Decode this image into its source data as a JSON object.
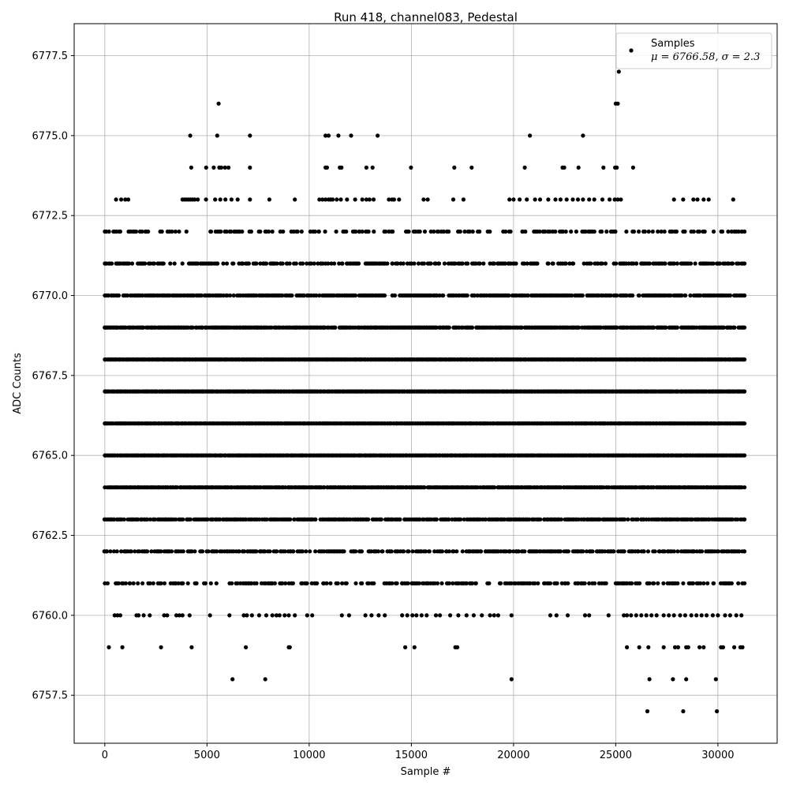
{
  "chart_data": {
    "type": "scatter",
    "title": "Run 418, channel083, Pedestal",
    "xlabel": "Sample #",
    "ylabel": "ADC Counts",
    "xlim": [
      -1500,
      32900
    ],
    "ylim": [
      6756.0,
      6778.5
    ],
    "x_ticks": [
      0,
      5000,
      10000,
      15000,
      20000,
      25000,
      30000
    ],
    "x_tick_labels": [
      "0",
      "5000",
      "10000",
      "15000",
      "20000",
      "25000",
      "30000"
    ],
    "y_ticks": [
      6757.5,
      6760.0,
      6762.5,
      6765.0,
      6767.5,
      6770.0,
      6772.5,
      6775.0,
      6777.5
    ],
    "y_tick_labels": [
      "6757.5",
      "6760.0",
      "6762.5",
      "6765.0",
      "6767.5",
      "6770.0",
      "6772.5",
      "6775.0",
      "6777.5"
    ],
    "grid": true,
    "legend_position": "top-right",
    "marker_color": "#000000",
    "series": [
      {
        "name": "Samples",
        "stats_label": "μ = 6766.58, σ = 2.3",
        "x_range": [
          0,
          31300
        ],
        "levels": [
          {
            "y": 6777,
            "x": [
              25150
            ]
          },
          {
            "y": 6776,
            "x": [
              5570,
              25000,
              25100
            ]
          },
          {
            "y": 6775,
            "x": [
              4180,
              5500,
              7100,
              10800,
              10950,
              11430,
              12050,
              13350,
              20800,
              23400
            ]
          },
          {
            "y": 6774,
            "x": [
              4230,
              4960,
              5330,
              5600,
              5700,
              5880,
              6050,
              7100,
              10800,
              10870,
              11500,
              11580,
              12800,
              13100,
              14980,
              17100,
              17950,
              20550,
              22400,
              22480,
              23180,
              24400,
              24970,
              25050,
              25850
            ]
          },
          {
            "y": 6773,
            "x": [
              550,
              800,
              1000,
              1150,
              3800,
              3900,
              4000,
              4100,
              4200,
              4300,
              4400,
              4550,
              4950,
              5400,
              5650,
              5900,
              6200,
              6500,
              7100,
              8050,
              9300,
              10500,
              10650,
              10800,
              10950,
              11050,
              11150,
              11350,
              11550,
              11850,
              12250,
              12600,
              12800,
              12950,
              13150,
              13900,
              14050,
              14150,
              14400,
              15600,
              15800,
              17050,
              17550,
              19800,
              20000,
              20300,
              20650,
              21050,
              21300,
              21700,
              22050,
              22300,
              22600,
              22900,
              23150,
              23400,
              23700,
              23950,
              24350,
              24700,
              24950,
              25100,
              25250,
              27850,
              28300,
              28800,
              29000,
              29300,
              29550,
              30750
            ]
          },
          {
            "y": 6772,
            "dense": true,
            "density": 0.35
          },
          {
            "y": 6771,
            "dense": true,
            "density": 0.55
          },
          {
            "y": 6770,
            "dense": true,
            "density": 0.75
          },
          {
            "y": 6769,
            "dense": true,
            "density": 0.9
          },
          {
            "y": 6768,
            "dense": true,
            "density": 1.0
          },
          {
            "y": 6767,
            "dense": true,
            "density": 1.0
          },
          {
            "y": 6766,
            "dense": true,
            "density": 1.0
          },
          {
            "y": 6765,
            "dense": true,
            "density": 1.0
          },
          {
            "y": 6764,
            "dense": true,
            "density": 0.95
          },
          {
            "y": 6763,
            "dense": true,
            "density": 0.8
          },
          {
            "y": 6762,
            "dense": true,
            "density": 0.6
          },
          {
            "y": 6761,
            "dense": true,
            "density": 0.45
          },
          {
            "y": 6760,
            "x": [
              480,
              620,
              760,
              1550,
              1650,
              1900,
              2200,
              2900,
              3050,
              3500,
              3650,
              3800,
              4150,
              5150,
              6100,
              6800,
              6950,
              7200,
              7550,
              7900,
              8200,
              8400,
              8550,
              8800,
              9000,
              9300,
              9900,
              10150,
              11600,
              11950,
              12750,
              13050,
              13400,
              13700,
              14550,
              14800,
              15050,
              15250,
              15500,
              15750,
              16200,
              16400,
              16900,
              17300,
              17700,
              18050,
              18450,
              18850,
              19050,
              19250,
              19900,
              21800,
              22100,
              22650,
              23500,
              23700,
              24650,
              25400,
              25550,
              25750,
              26000,
              26250,
              26500,
              26750,
              27000,
              27350,
              27600,
              27850,
              28150,
              28400,
              28700,
              28950,
              29200,
              29450,
              29750,
              30000,
              30350,
              30600,
              30900,
              31150
            ]
          },
          {
            "y": 6759,
            "x": [
              200,
              860,
              2750,
              4250,
              6900,
              9000,
              9050,
              14700,
              15150,
              17150,
              17250,
              25550,
              26150,
              26600,
              27350,
              27900,
              28050,
              28450,
              28550,
              29100,
              29300,
              30150,
              30250,
              30800,
              31100,
              31200
            ]
          },
          {
            "y": 6758,
            "x": [
              6250,
              7850,
              19900,
              26650,
              27800,
              28450,
              29900
            ]
          },
          {
            "y": 6757,
            "x": [
              26550,
              28300,
              29950
            ]
          }
        ]
      }
    ]
  }
}
